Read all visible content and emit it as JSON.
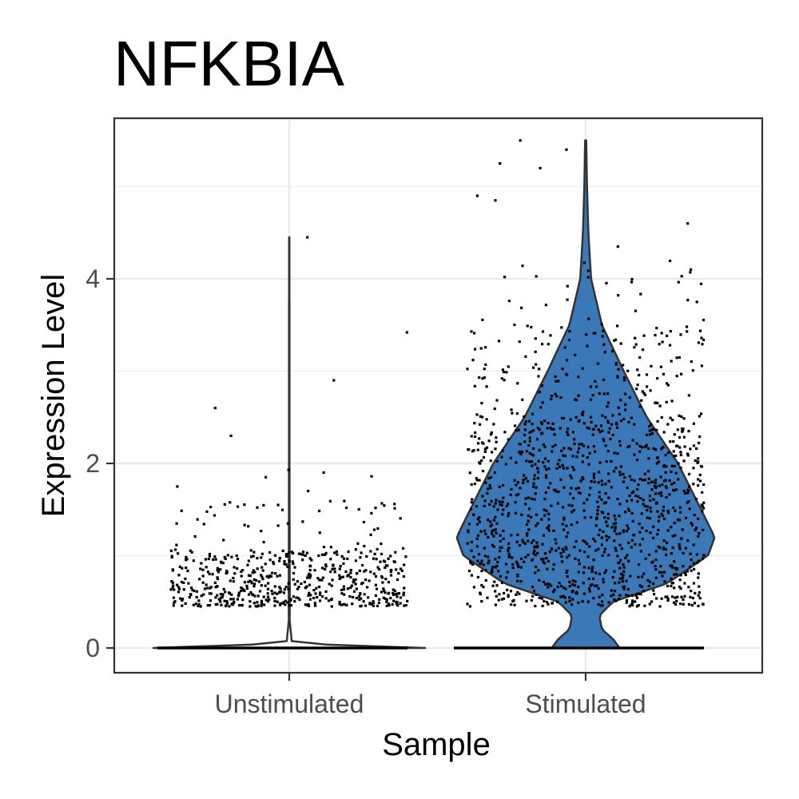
{
  "chart_data": {
    "type": "violin",
    "title": "NFKBIA",
    "xlabel": "Sample",
    "ylabel": "Expression Level",
    "categories": [
      "Unstimulated",
      "Stimulated"
    ],
    "ylim": [
      -0.25,
      5.6
    ],
    "yticks": [
      0,
      2,
      4
    ],
    "grid": true,
    "legend": "none",
    "fill_colors": [
      "#ffffff",
      "#3a78b7"
    ],
    "series": [
      {
        "category": "Unstimulated",
        "max": 4.45,
        "density": [
          [
            0,
            1.0
          ],
          [
            0.05,
            0.02
          ],
          [
            0.3,
            0.003
          ],
          [
            0.6,
            0.004
          ],
          [
            1.0,
            0.003
          ],
          [
            2.0,
            0.002
          ],
          [
            3.0,
            0.002
          ],
          [
            4.45,
            0.001
          ]
        ],
        "points": [
          {
            "range": [
              0.45,
              1.05
            ],
            "n": 520
          },
          {
            "range": [
              1.05,
              1.6
            ],
            "n": 55
          },
          {
            "values": [
              1.9,
              1.93,
              1.85,
              1.75,
              1.7,
              1.86,
              2.3,
              2.6,
              2.9,
              3.42,
              4.45
            ]
          }
        ]
      },
      {
        "category": "Stimulated",
        "max": 5.5,
        "density": [
          [
            0,
            0.25
          ],
          [
            0.1,
            0.2
          ],
          [
            0.2,
            0.12
          ],
          [
            0.35,
            0.1
          ],
          [
            0.5,
            0.2
          ],
          [
            0.7,
            0.6
          ],
          [
            1.0,
            0.9
          ],
          [
            1.2,
            0.95
          ],
          [
            1.5,
            0.85
          ],
          [
            2.0,
            0.68
          ],
          [
            2.5,
            0.45
          ],
          [
            3.0,
            0.28
          ],
          [
            3.5,
            0.12
          ],
          [
            4.0,
            0.04
          ],
          [
            4.5,
            0.02
          ],
          [
            5.0,
            0.01
          ],
          [
            5.5,
            0.004
          ]
        ],
        "points": [
          {
            "range": [
              0.45,
              2.5
            ],
            "n": 1100
          },
          {
            "range": [
              2.5,
              3.5
            ],
            "n": 180
          },
          {
            "range": [
              3.5,
              4.2
            ],
            "n": 30
          },
          {
            "values": [
              4.35,
              4.6,
              4.85,
              4.9,
              5.2,
              5.25,
              5.4,
              5.5
            ]
          }
        ]
      }
    ]
  }
}
